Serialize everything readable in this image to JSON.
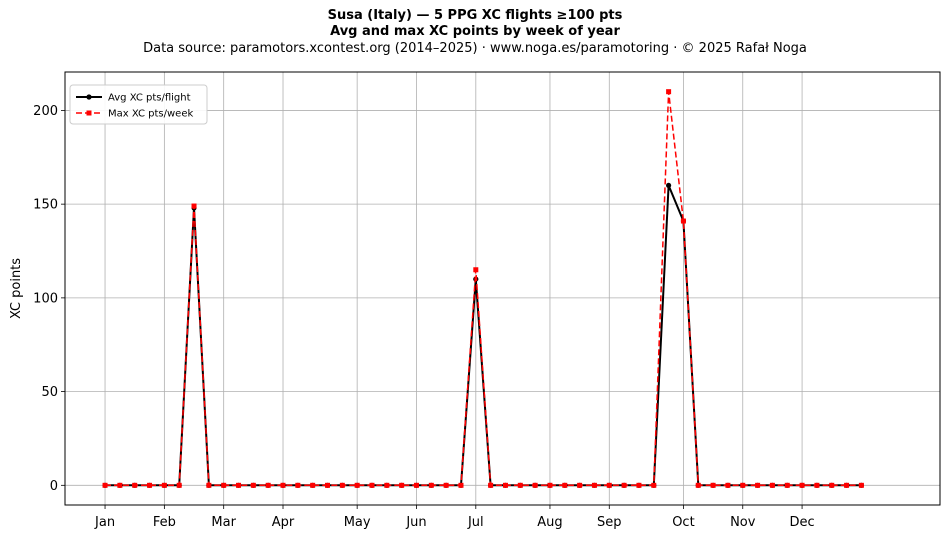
{
  "title": "Susa (Italy)  —  5 PPG XC flights ≥100 pts",
  "subtitle": "Avg and max XC points by week of year",
  "source": "Data source: paramotors.xcontest.org (2014–2025)  ·  www.noga.es/paramotoring  ·  © 2025 Rafał Noga",
  "chart_data": {
    "type": "line",
    "title": "Susa (Italy)  —  5 PPG XC flights ≥100 pts",
    "subtitle": "Avg and max XC points by week of year",
    "xlabel": "",
    "ylabel": "XC points",
    "xlim": [
      -2.7,
      56.3
    ],
    "ylim": [
      -10.5,
      220.5
    ],
    "grid": true,
    "legend_position": "upper-left",
    "x_ticks": [
      {
        "label": "Jan",
        "x": 0
      },
      {
        "label": "Feb",
        "x": 4
      },
      {
        "label": "Mar",
        "x": 8
      },
      {
        "label": "Apr",
        "x": 12
      },
      {
        "label": "May",
        "x": 17
      },
      {
        "label": "Jun",
        "x": 21
      },
      {
        "label": "Jul",
        "x": 25
      },
      {
        "label": "Aug",
        "x": 30
      },
      {
        "label": "Sep",
        "x": 34
      },
      {
        "label": "Oct",
        "x": 39
      },
      {
        "label": "Nov",
        "x": 43
      },
      {
        "label": "Dec",
        "x": 47
      }
    ],
    "y_ticks": [
      0,
      50,
      100,
      150,
      200
    ],
    "x": [
      0,
      1,
      2,
      3,
      4,
      5,
      6,
      7,
      8,
      9,
      10,
      11,
      12,
      13,
      14,
      15,
      16,
      17,
      18,
      19,
      20,
      21,
      22,
      23,
      24,
      25,
      26,
      27,
      28,
      29,
      30,
      31,
      32,
      33,
      34,
      35,
      36,
      37,
      38,
      39,
      40,
      41,
      42,
      43,
      44,
      45,
      46,
      47,
      48,
      49,
      50,
      51
    ],
    "series": [
      {
        "name": "Avg XC pts/flight",
        "color": "#000000",
        "style": "solid",
        "marker": "circle",
        "values": [
          0,
          0,
          0,
          0,
          0,
          0,
          148,
          0,
          0,
          0,
          0,
          0,
          0,
          0,
          0,
          0,
          0,
          0,
          0,
          0,
          0,
          0,
          0,
          0,
          0,
          110,
          0,
          0,
          0,
          0,
          0,
          0,
          0,
          0,
          0,
          0,
          0,
          0,
          160,
          141,
          0,
          0,
          0,
          0,
          0,
          0,
          0,
          0,
          0,
          0,
          0,
          0
        ]
      },
      {
        "name": "Max XC pts/week",
        "color": "#ff0000",
        "style": "dashed",
        "marker": "square",
        "values": [
          0,
          0,
          0,
          0,
          0,
          0,
          149,
          0,
          0,
          0,
          0,
          0,
          0,
          0,
          0,
          0,
          0,
          0,
          0,
          0,
          0,
          0,
          0,
          0,
          0,
          115,
          0,
          0,
          0,
          0,
          0,
          0,
          0,
          0,
          0,
          0,
          0,
          0,
          210,
          141,
          0,
          0,
          0,
          0,
          0,
          0,
          0,
          0,
          0,
          0,
          0,
          0
        ]
      }
    ]
  }
}
